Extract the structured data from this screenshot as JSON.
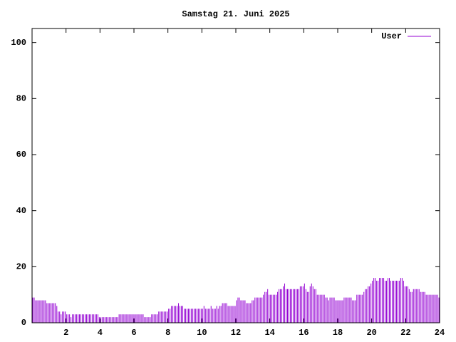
{
  "chart_data": {
    "type": "impulse",
    "title": "Samstag 21. Juni 2025",
    "xlim": [
      0,
      24
    ],
    "xticks": [
      2,
      4,
      6,
      8,
      10,
      12,
      14,
      16,
      18,
      20,
      22,
      24
    ],
    "ylim": [
      0,
      105
    ],
    "yticks": [
      0,
      20,
      40,
      60,
      80,
      100
    ],
    "legend": "top-right",
    "x": [
      0,
      0.083,
      0.167,
      0.25,
      0.333,
      0.417,
      0.5,
      0.583,
      0.667,
      0.75,
      0.833,
      0.917,
      1,
      1.083,
      1.167,
      1.25,
      1.333,
      1.417,
      1.5,
      1.583,
      1.667,
      1.75,
      1.833,
      1.917,
      2,
      2.083,
      2.167,
      2.25,
      2.333,
      2.417,
      2.5,
      2.583,
      2.667,
      2.75,
      2.833,
      2.917,
      3,
      3.083,
      3.167,
      3.25,
      3.333,
      3.417,
      3.5,
      3.583,
      3.667,
      3.75,
      3.833,
      3.917,
      4,
      4.083,
      4.167,
      4.25,
      4.333,
      4.417,
      4.5,
      4.583,
      4.667,
      4.75,
      4.833,
      4.917,
      5,
      5.083,
      5.167,
      5.25,
      5.333,
      5.417,
      5.5,
      5.583,
      5.667,
      5.75,
      5.833,
      5.917,
      6,
      6.083,
      6.167,
      6.25,
      6.333,
      6.417,
      6.5,
      6.583,
      6.667,
      6.75,
      6.833,
      6.917,
      7,
      7.083,
      7.167,
      7.25,
      7.333,
      7.417,
      7.5,
      7.583,
      7.667,
      7.75,
      7.833,
      7.917,
      8,
      8.083,
      8.167,
      8.25,
      8.333,
      8.417,
      8.5,
      8.583,
      8.667,
      8.75,
      8.833,
      8.917,
      9,
      9.083,
      9.167,
      9.25,
      9.333,
      9.417,
      9.5,
      9.583,
      9.667,
      9.75,
      9.833,
      9.917,
      10,
      10.083,
      10.167,
      10.25,
      10.333,
      10.417,
      10.5,
      10.583,
      10.667,
      10.75,
      10.833,
      10.917,
      11,
      11.083,
      11.167,
      11.25,
      11.333,
      11.417,
      11.5,
      11.583,
      11.667,
      11.75,
      11.833,
      11.917,
      12,
      12.083,
      12.167,
      12.25,
      12.333,
      12.417,
      12.5,
      12.583,
      12.667,
      12.75,
      12.833,
      12.917,
      13,
      13.083,
      13.167,
      13.25,
      13.333,
      13.417,
      13.5,
      13.583,
      13.667,
      13.75,
      13.833,
      13.917,
      14,
      14.083,
      14.167,
      14.25,
      14.333,
      14.417,
      14.5,
      14.583,
      14.667,
      14.75,
      14.833,
      14.917,
      15,
      15.083,
      15.167,
      15.25,
      15.333,
      15.417,
      15.5,
      15.583,
      15.667,
      15.75,
      15.833,
      15.917,
      16,
      16.083,
      16.167,
      16.25,
      16.333,
      16.417,
      16.5,
      16.583,
      16.667,
      16.75,
      16.833,
      16.917,
      17,
      17.083,
      17.167,
      17.25,
      17.333,
      17.417,
      17.5,
      17.583,
      17.667,
      17.75,
      17.833,
      17.917,
      18,
      18.083,
      18.167,
      18.25,
      18.333,
      18.417,
      18.5,
      18.583,
      18.667,
      18.75,
      18.833,
      18.917,
      19,
      19.083,
      19.167,
      19.25,
      19.333,
      19.417,
      19.5,
      19.583,
      19.667,
      19.75,
      19.833,
      19.917,
      20,
      20.083,
      20.167,
      20.25,
      20.333,
      20.417,
      20.5,
      20.583,
      20.667,
      20.75,
      20.833,
      20.917,
      21,
      21.083,
      21.167,
      21.25,
      21.333,
      21.417,
      21.5,
      21.583,
      21.667,
      21.75,
      21.833,
      21.917,
      22,
      22.083,
      22.167,
      22.25,
      22.333,
      22.417,
      22.5,
      22.583,
      22.667,
      22.75,
      22.833,
      22.917,
      23,
      23.083,
      23.167,
      23.25,
      23.333,
      23.417,
      23.5,
      23.583,
      23.667,
      23.75,
      23.833,
      23.917
    ],
    "series": [
      {
        "name": "User",
        "color": "#9400d3",
        "values": [
          9,
          9,
          8,
          8,
          8,
          8,
          8,
          8,
          8,
          8,
          7,
          7,
          7,
          7,
          7,
          7,
          7,
          6,
          4,
          4,
          3,
          4,
          4,
          4,
          3,
          3,
          3,
          2,
          3,
          3,
          3,
          3,
          3,
          3,
          3,
          3,
          3,
          3,
          3,
          3,
          3,
          3,
          3,
          3,
          3,
          3,
          3,
          2,
          2,
          2,
          2,
          2,
          2,
          2,
          2,
          2,
          2,
          2,
          2,
          2,
          2,
          3,
          3,
          3,
          3,
          3,
          3,
          3,
          3,
          3,
          3,
          3,
          3,
          3,
          3,
          3,
          3,
          3,
          3,
          2,
          2,
          2,
          2,
          2,
          3,
          3,
          3,
          3,
          3,
          4,
          4,
          4,
          4,
          4,
          4,
          4,
          5,
          5,
          6,
          6,
          6,
          6,
          6,
          7,
          6,
          6,
          6,
          5,
          5,
          5,
          5,
          5,
          5,
          5,
          5,
          5,
          5,
          5,
          5,
          5,
          5,
          6,
          5,
          5,
          5,
          5,
          6,
          5,
          5,
          5,
          6,
          5,
          6,
          6,
          7,
          7,
          7,
          7,
          6,
          6,
          6,
          6,
          6,
          6,
          8,
          9,
          9,
          8,
          8,
          8,
          8,
          7,
          7,
          7,
          7,
          8,
          8,
          9,
          9,
          9,
          9,
          9,
          9,
          10,
          11,
          11,
          12,
          10,
          10,
          10,
          10,
          10,
          10,
          11,
          12,
          12,
          12,
          13,
          14,
          12,
          12,
          12,
          12,
          12,
          12,
          12,
          12,
          12,
          12,
          13,
          13,
          13,
          14,
          12,
          11,
          11,
          13,
          14,
          13,
          12,
          12,
          10,
          10,
          10,
          10,
          10,
          10,
          9,
          9,
          8,
          9,
          9,
          9,
          9,
          8,
          8,
          8,
          8,
          8,
          8,
          9,
          9,
          9,
          9,
          9,
          9,
          8,
          8,
          8,
          10,
          10,
          10,
          10,
          10,
          11,
          12,
          12,
          13,
          13,
          14,
          15,
          16,
          16,
          15,
          15,
          16,
          16,
          16,
          16,
          15,
          15,
          16,
          16,
          15,
          15,
          15,
          15,
          15,
          15,
          15,
          16,
          16,
          15,
          13,
          13,
          13,
          12,
          11,
          11,
          12,
          12,
          12,
          12,
          12,
          11,
          11,
          11,
          11,
          10,
          10,
          10,
          10,
          10,
          10,
          10,
          10,
          10,
          9
        ]
      }
    ]
  }
}
